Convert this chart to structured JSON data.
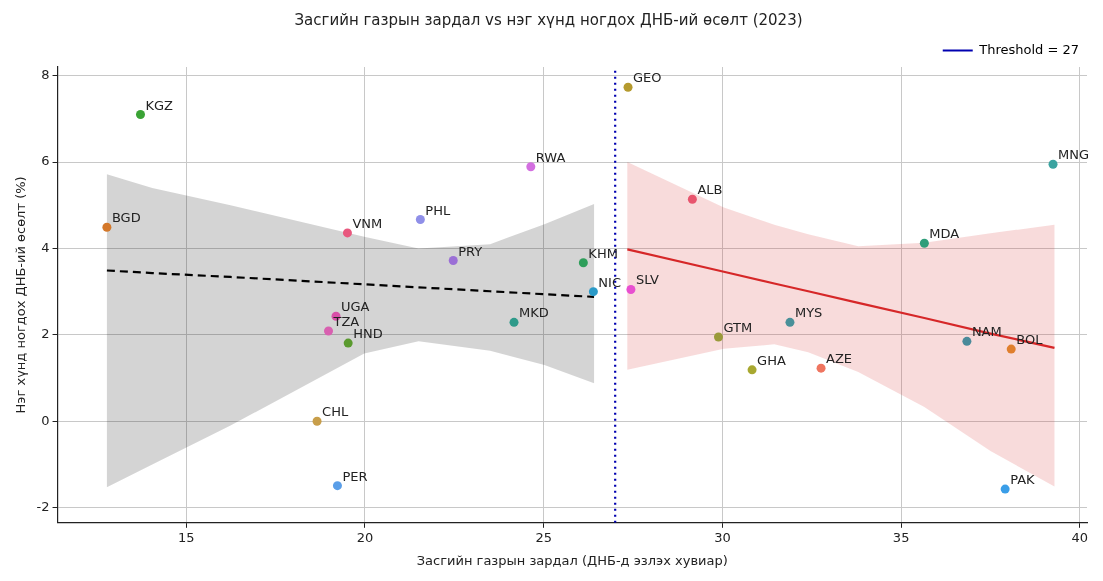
{
  "chart_data": {
    "type": "scatter",
    "title": "Засгийн газрын зардал vs нэг хүнд ногдох ДНБ-ий өсөлт (2023)",
    "xlabel": "Засгийн газрын зардал (ДНБ-д эзлэх хувиар)",
    "ylabel": "Нэг хүнд ногдох ДНБ-ий өсөлт (%)",
    "xlim": [
      11.4,
      40.2
    ],
    "ylim": [
      -2.35,
      8.2
    ],
    "xticks": [
      15,
      20,
      25,
      30,
      35,
      40
    ],
    "yticks": [
      -2,
      0,
      2,
      4,
      6,
      8
    ],
    "grid": true,
    "legend": "top right",
    "ref_lines": [
      {
        "axis": "x",
        "value": 27,
        "label": "Threshold = 27",
        "color": "#0000b0",
        "line_style": "dotted"
      }
    ],
    "series": [
      {
        "type": "scatter",
        "marker": "circle",
        "x": [
          13.72,
          27.36,
          24.64,
          39.25,
          29.16,
          12.78,
          21.55,
          19.51,
          35.65,
          22.47,
          26.11,
          26.39,
          27.44,
          19.19,
          24.17,
          31.89,
          18.98,
          29.89,
          19.53,
          36.84,
          38.08,
          30.83,
          32.76,
          18.66,
          19.23,
          37.91
        ],
        "values": [
          7.1,
          7.73,
          5.89,
          5.95,
          5.14,
          4.49,
          4.67,
          4.36,
          4.12,
          3.72,
          3.67,
          3.0,
          3.05,
          2.43,
          2.29,
          2.29,
          2.09,
          1.95,
          1.81,
          1.85,
          1.67,
          1.19,
          1.23,
          0.0,
          -1.49,
          -1.57
        ],
        "value_labels": [
          "KGZ",
          "GEO",
          "RWA",
          "MNG",
          "ALB",
          "BGD",
          "PHL",
          "VNM",
          "MDA",
          "PRY",
          "KHM",
          "NIC",
          "SLV",
          "UGA",
          "MKD",
          "MYS",
          "TZA",
          "GTM",
          "HND",
          "NAM",
          "BOL",
          "GHA",
          "AZE",
          "CHL",
          "PER",
          "PAK"
        ],
        "colors": [
          "#3aa335",
          "#b59a2e",
          "#d36fe0",
          "#3ba3a0",
          "#e8556e",
          "#d4782a",
          "#8f8fe8",
          "#e8587e",
          "#2e9e7a",
          "#9b6fd6",
          "#2e9e5a",
          "#2a9ac8",
          "#e84fd0",
          "#d84fa8",
          "#2e9a8a",
          "#4a9099",
          "#d860b0",
          "#9a9a3a",
          "#5a9a2e",
          "#4a8a9a",
          "#e07f2e",
          "#a8a830",
          "#ef7560",
          "#c89e4a",
          "#5a9ee8",
          "#3a9ee8"
        ]
      },
      {
        "type": "line",
        "color": "#000000",
        "line_style": "dashed",
        "x": [
          12.78,
          14.05,
          16.24,
          19.98,
          21.5,
          23.5,
          25.02,
          26.41
        ],
        "values": [
          3.49,
          3.43,
          3.34,
          3.17,
          3.1,
          3.01,
          2.94,
          2.88
        ],
        "upper": [
          5.72,
          5.4,
          5.0,
          4.27,
          4.0,
          4.1,
          4.56,
          5.03
        ],
        "lower": [
          -1.53,
          -1.0,
          -0.1,
          1.57,
          1.85,
          1.63,
          1.3,
          0.88
        ]
      },
      {
        "type": "line",
        "color": "#d62728",
        "line_style": "solid",
        "x": [
          27.34,
          30.04,
          31.45,
          32.4,
          33.8,
          35.65,
          37.5,
          39.29
        ],
        "values": [
          3.98,
          3.46,
          3.19,
          3.01,
          2.74,
          2.39,
          2.03,
          1.7
        ],
        "upper": [
          6.0,
          4.95,
          4.55,
          4.33,
          4.05,
          4.13,
          4.35,
          4.55
        ],
        "lower": [
          1.19,
          1.68,
          1.78,
          1.6,
          1.14,
          0.33,
          -0.69,
          -1.51
        ]
      }
    ]
  }
}
